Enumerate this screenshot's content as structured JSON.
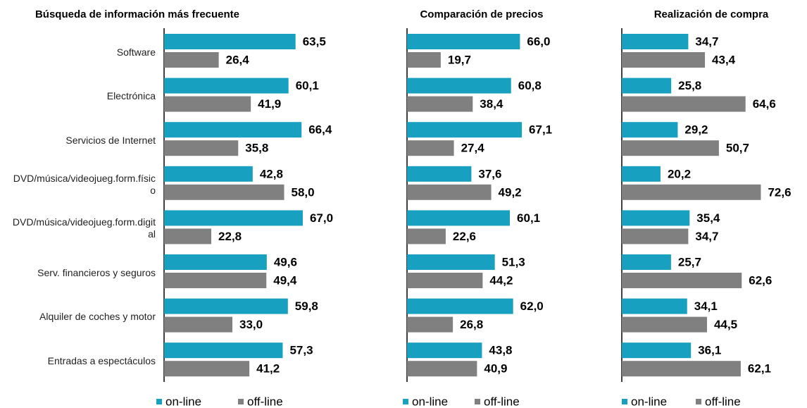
{
  "chart_data": [
    {
      "type": "bar",
      "orientation": "horizontal",
      "title": "Búsqueda de información más frecuente",
      "categories": [
        "Software",
        "Electrónica",
        "Servicios de Internet",
        "DVD/música/videojueg.form.físico",
        "DVD/música/videojueg.form.digital",
        "Serv. financieros y seguros",
        "Alquiler de coches y motor",
        "Entradas a espectáculos"
      ],
      "series": [
        {
          "name": "on-line",
          "color": "#17a0bf",
          "values": [
            63.5,
            60.1,
            66.4,
            42.8,
            67.0,
            49.6,
            59.8,
            57.3
          ],
          "value_labels": [
            "63,5",
            "60,1",
            "66,4",
            "42,8",
            "67,0",
            "49,6",
            "59,8",
            "57,3"
          ]
        },
        {
          "name": "off-line",
          "color": "#808080",
          "values": [
            26.4,
            41.9,
            35.8,
            58.0,
            22.8,
            49.4,
            33.0,
            41.2
          ],
          "value_labels": [
            "26,4",
            "41,9",
            "35,8",
            "58,0",
            "22,8",
            "49,4",
            "33,0",
            "41,2"
          ]
        }
      ]
    },
    {
      "type": "bar",
      "orientation": "horizontal",
      "title": "Comparación de precios",
      "series": [
        {
          "name": "on-line",
          "color": "#17a0bf",
          "values": [
            66.0,
            60.8,
            67.1,
            37.6,
            60.1,
            51.3,
            62.0,
            43.8
          ],
          "value_labels": [
            "66,0",
            "60,8",
            "67,1",
            "37,6",
            "60,1",
            "51,3",
            "62,0",
            "43,8"
          ]
        },
        {
          "name": "off-line",
          "color": "#808080",
          "values": [
            19.7,
            38.4,
            27.4,
            49.2,
            22.6,
            44.2,
            26.8,
            40.9
          ],
          "value_labels": [
            "19,7",
            "38,4",
            "27,4",
            "49,2",
            "22,6",
            "44,2",
            "26,8",
            "40,9"
          ]
        }
      ]
    },
    {
      "type": "bar",
      "orientation": "horizontal",
      "title": "Realización de compra",
      "series": [
        {
          "name": "on-line",
          "color": "#17a0bf",
          "values": [
            34.7,
            25.8,
            29.2,
            20.2,
            35.4,
            25.7,
            34.1,
            36.1
          ],
          "value_labels": [
            "34,7",
            "25,8",
            "29,2",
            "20,2",
            "35,4",
            "25,7",
            "34,1",
            "36,1"
          ]
        },
        {
          "name": "off-line",
          "color": "#808080",
          "values": [
            43.4,
            64.6,
            50.7,
            72.6,
            34.7,
            62.6,
            44.5,
            62.1
          ],
          "value_labels": [
            "43,4",
            "64,6",
            "50,7",
            "72,6",
            "34,7",
            "62,6",
            "44,5",
            "62,1"
          ]
        }
      ]
    }
  ]
}
